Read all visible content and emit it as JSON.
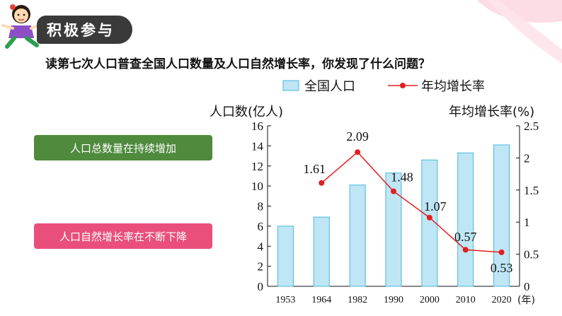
{
  "header": {
    "title": "积极参与"
  },
  "question": "读第七次人口普查全国人口数量及人口自然增长率，你发现了什么问题？",
  "points": [
    {
      "label": "人口总数量在持续增加",
      "color": "#4f8a3d"
    },
    {
      "label": "人口自然增长率在不断下降",
      "color": "#ea4f7c"
    }
  ],
  "chart_data": {
    "type": "bar",
    "categories": [
      "1953",
      "1964",
      "1982",
      "1990",
      "2000",
      "2010",
      "2020"
    ],
    "x_unit": "(年)",
    "legend": {
      "bar_label": "全国人口",
      "line_label": "年均增长率",
      "placement": "top"
    },
    "left_axis": {
      "label": "人口数(亿人)",
      "range": [
        0,
        16
      ],
      "ticks": [
        "0",
        "2",
        "4",
        "6",
        "8",
        "10",
        "12",
        "14",
        "16"
      ]
    },
    "right_axis": {
      "label": "年均增长率(%)",
      "range": [
        0,
        2.5
      ],
      "ticks": [
        "0",
        "0.5",
        "1",
        "1.5",
        "2",
        "2.5"
      ]
    },
    "series": [
      {
        "name": "全国人口",
        "kind": "bar",
        "axis": "left",
        "values": [
          6.0,
          6.9,
          10.1,
          11.3,
          12.6,
          13.3,
          14.1
        ],
        "color": "#bfe6f5",
        "stroke": "#4ab6dc"
      },
      {
        "name": "年均增长率",
        "kind": "line",
        "axis": "right",
        "values": [
          null,
          1.61,
          2.09,
          1.48,
          1.07,
          0.57,
          0.53
        ],
        "labels": [
          null,
          "1.61",
          "2.09",
          "1.48",
          "1.07",
          "0.57",
          "0.53"
        ],
        "color": "#e02020"
      }
    ],
    "grid": false
  }
}
